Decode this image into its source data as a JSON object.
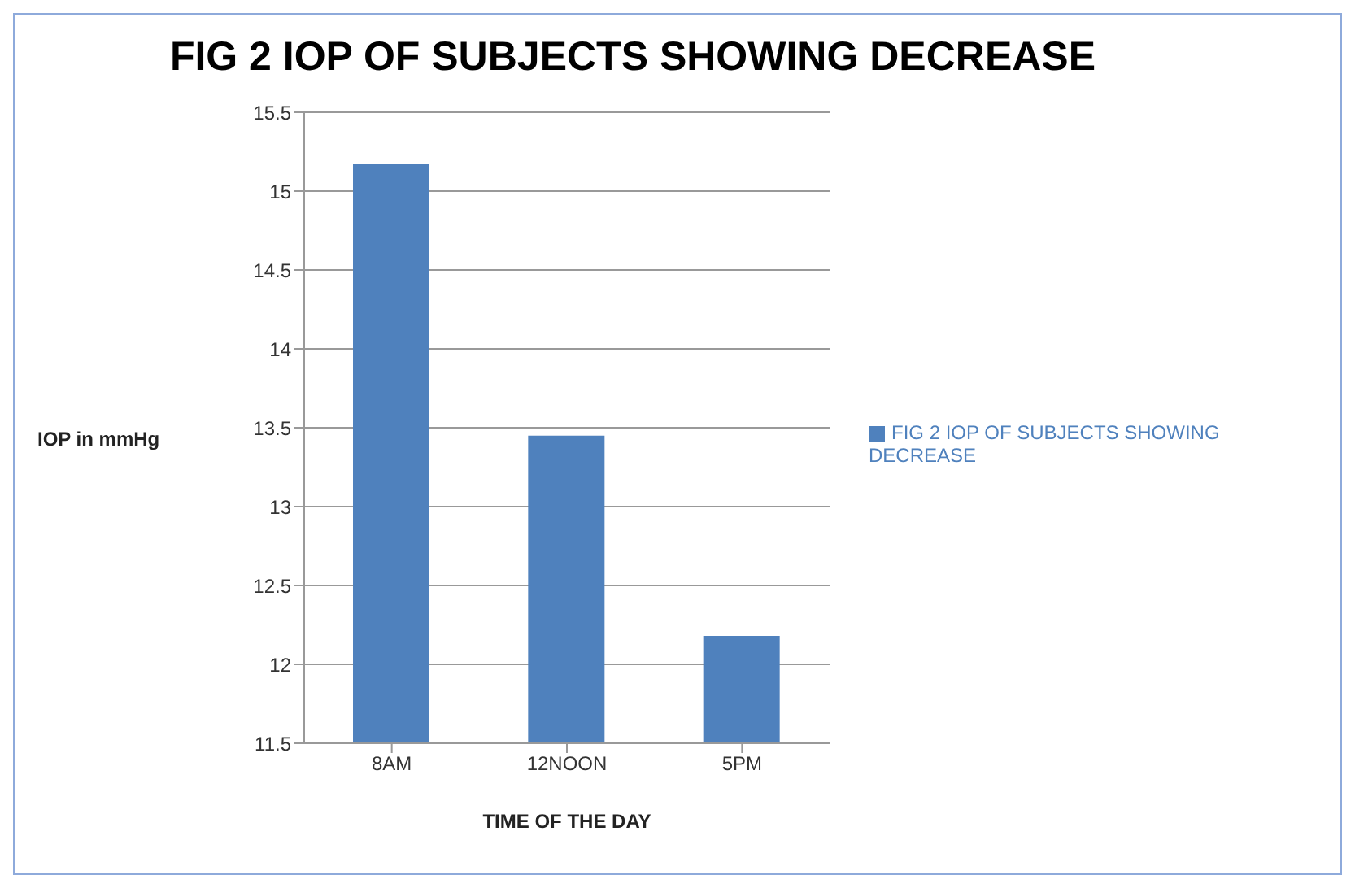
{
  "chart_data": {
    "type": "bar",
    "title": "FIG 2 IOP OF SUBJECTS SHOWING DECREASE",
    "xlabel": "TIME OF THE DAY",
    "ylabel": "IOP in mmHg",
    "categories": [
      "8AM",
      "12NOON",
      "5PM"
    ],
    "series": [
      {
        "name": "FIG 2 IOP OF SUBJECTS SHOWING DECREASE",
        "color": "#4f81bd",
        "values": [
          15.17,
          13.45,
          12.18
        ]
      }
    ],
    "ylim": [
      11.5,
      15.5
    ],
    "yticks": [
      11.5,
      12,
      12.5,
      13,
      13.5,
      14,
      14.5,
      15,
      15.5
    ],
    "grid": "y",
    "legend": "right"
  }
}
